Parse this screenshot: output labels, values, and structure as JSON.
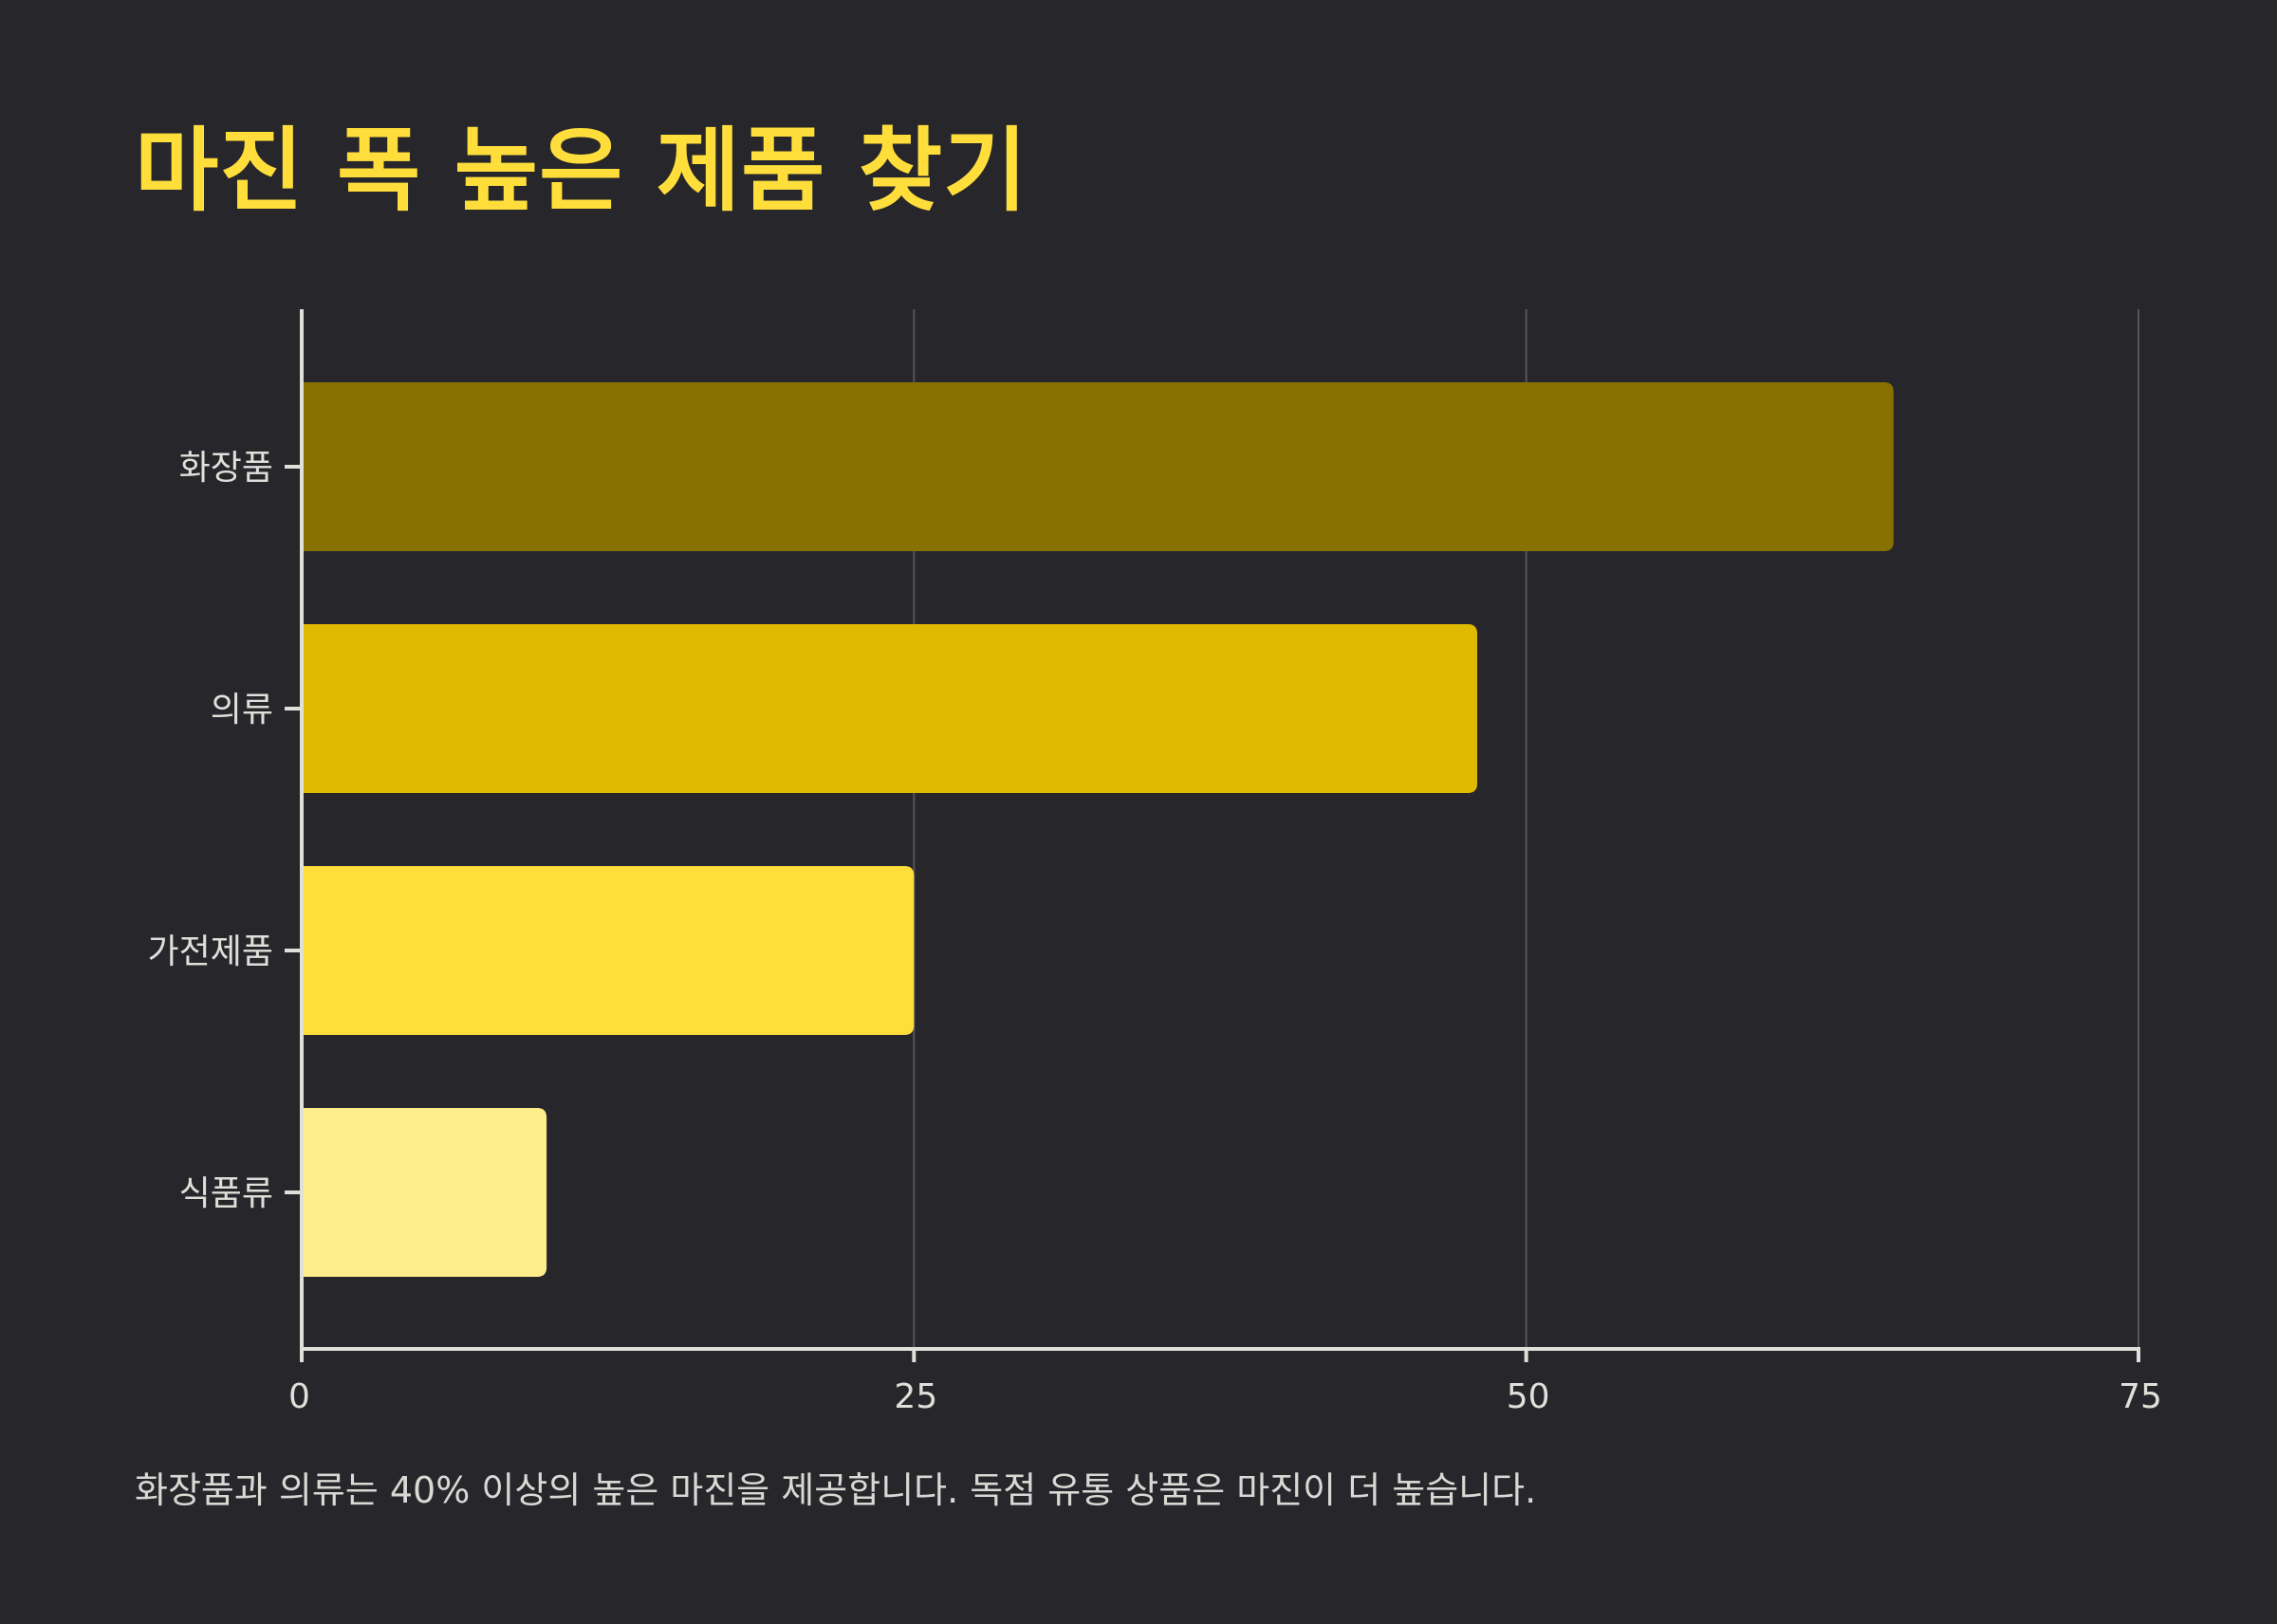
{
  "title": "마진 폭 높은 제품 찾기",
  "footnote": "화장품과 의류는 40% 이상의 높은 마진을 제공합니다. 독점 유통 상품은 마진이 더 높습니다.",
  "chart_data": {
    "type": "bar",
    "orientation": "horizontal",
    "title": "마진 폭 높은 제품 찾기",
    "xlabel": "",
    "ylabel": "",
    "categories": [
      "화장품",
      "의류",
      "가전제품",
      "식품류"
    ],
    "values": [
      65,
      48,
      25,
      10
    ],
    "colors": [
      "#887100",
      "#e0ba00",
      "#ffde3c",
      "#ffec8a"
    ],
    "xlim": [
      0,
      75
    ],
    "xticks": [
      0,
      25,
      50,
      75
    ],
    "xtick_labels": [
      "0",
      "25",
      "50",
      "75"
    ],
    "grid": "vertical",
    "legend": "none"
  }
}
